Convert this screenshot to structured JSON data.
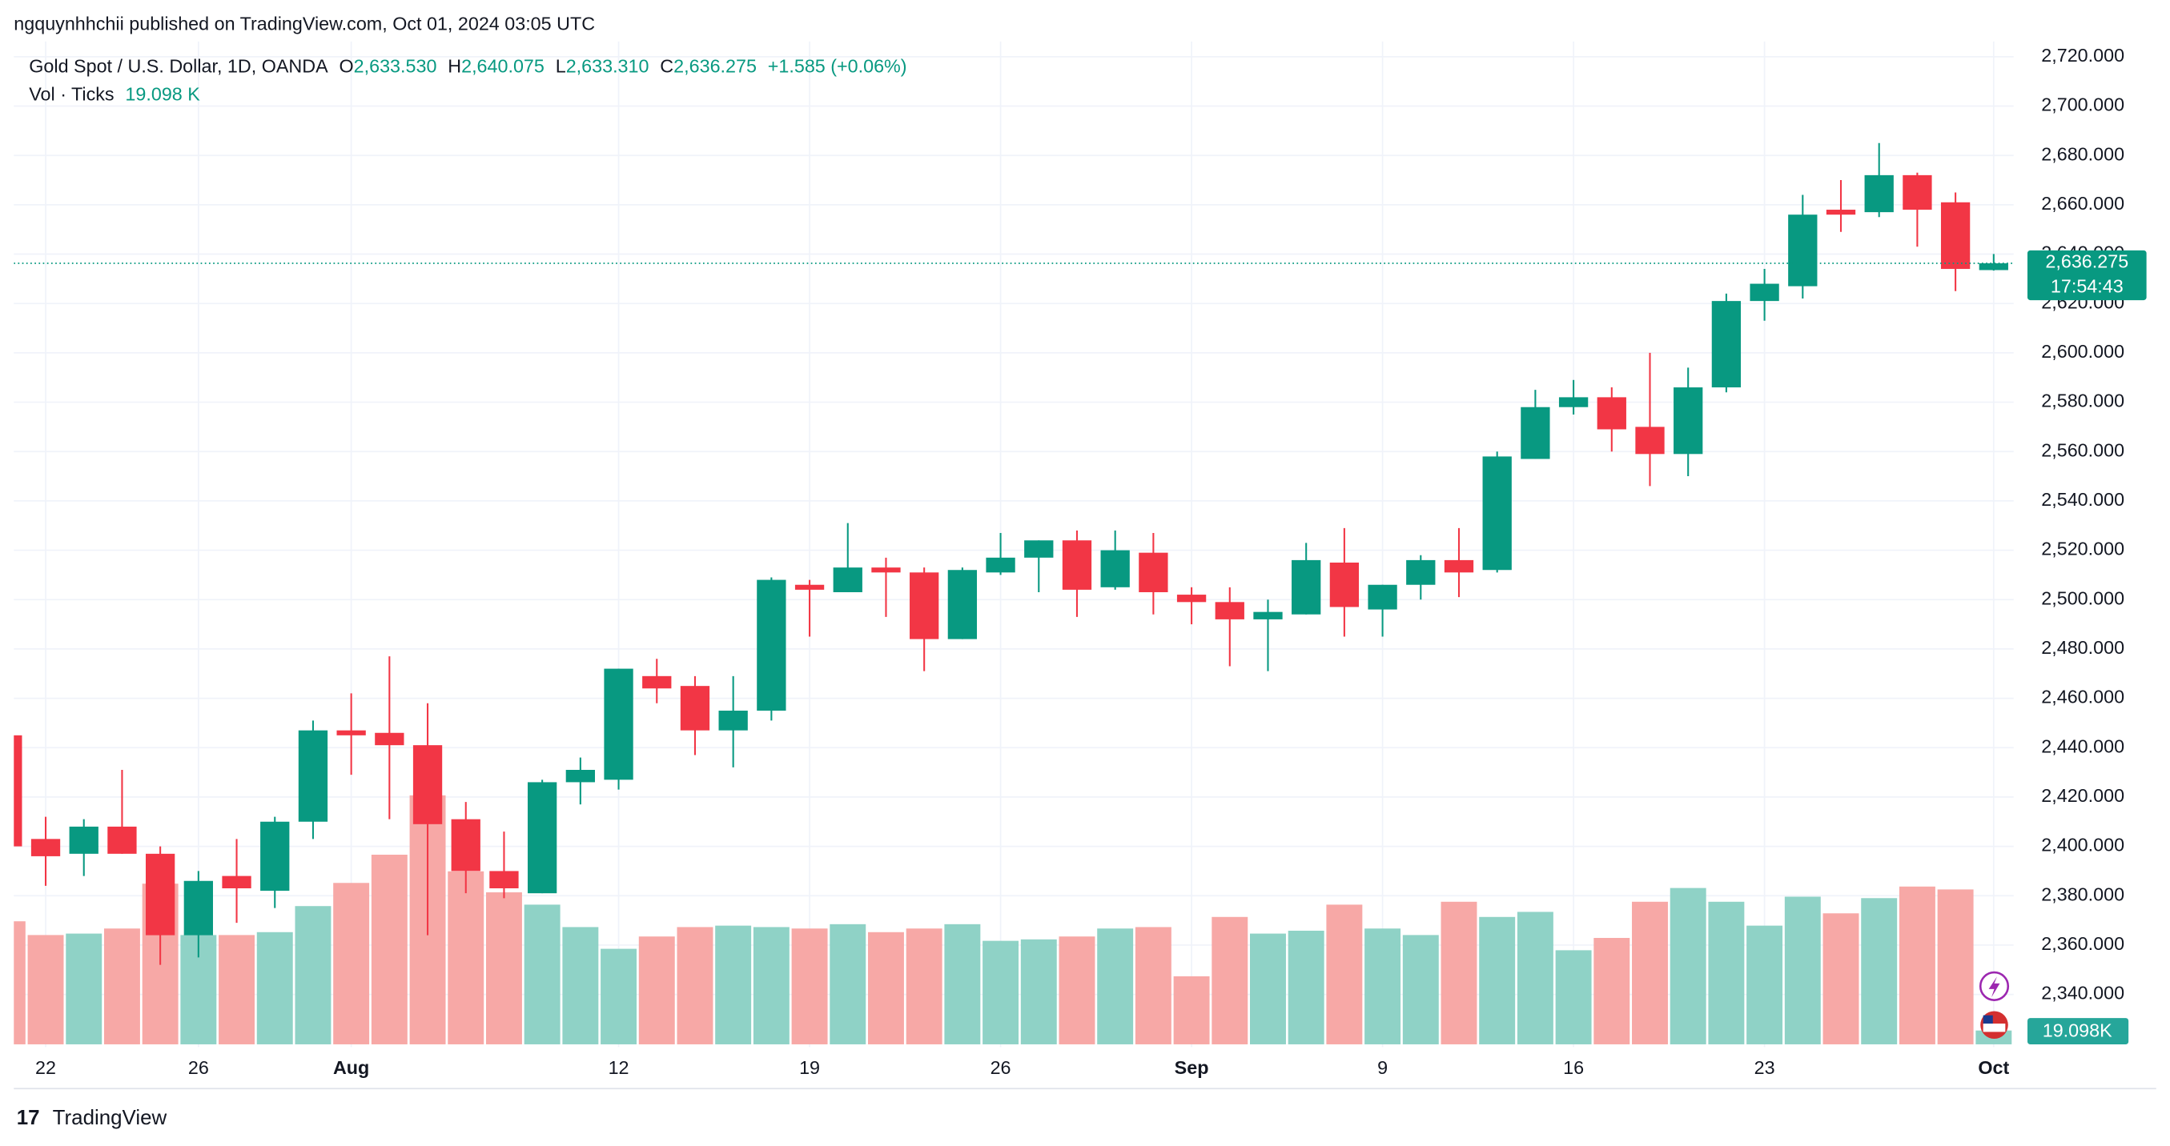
{
  "publisher": "ngquynhhchii published on TradingView.com, Oct 01, 2024 03:05 UTC",
  "header": {
    "symbol": "Gold Spot / U.S. Dollar, 1D, OANDA",
    "o_label": "O",
    "o": "2,633.530",
    "h_label": "H",
    "h": "2,640.075",
    "l_label": "L",
    "l": "2,633.310",
    "c_label": "C",
    "c": "2,636.275",
    "change": "+1.585 (+0.06%)",
    "vol_label": "Vol · Ticks",
    "vol": "19.098 K"
  },
  "price_label": "2,636.275",
  "countdown": "17:54:43",
  "volume_label": "19.098K",
  "brand": "TradingView",
  "chart_data": {
    "type": "candlestick",
    "up_color": "#089981",
    "down_color": "#f23645",
    "up_volume_color": "#8fd2c6",
    "down_volume_color": "#f7a8a6",
    "grid": true,
    "categories": [
      null,
      "22",
      null,
      null,
      null,
      "26",
      null,
      null,
      null,
      "Aug",
      null,
      null,
      null,
      null,
      null,
      null,
      "12",
      null,
      null,
      null,
      null,
      "19",
      null,
      null,
      null,
      null,
      "26",
      null,
      null,
      null,
      null,
      "Sep",
      null,
      null,
      null,
      null,
      "9",
      null,
      null,
      null,
      null,
      "16",
      null,
      null,
      null,
      null,
      "23",
      null,
      null,
      null,
      null,
      null,
      "Oct"
    ],
    "open": [
      2445,
      2403,
      2397,
      2408,
      2397,
      2364,
      2388,
      2382,
      2410,
      2447,
      2446,
      2441,
      2411,
      2390,
      2381,
      2426,
      2427,
      2469,
      2465,
      2447,
      2455,
      2506,
      2503,
      2513,
      2511,
      2484,
      2511,
      2517,
      2524,
      2505,
      2519,
      2502,
      2499,
      2492,
      2494,
      2515,
      2496,
      2506,
      2516,
      2512,
      2557,
      2578,
      2582,
      2570,
      2559,
      2586,
      2621,
      2627,
      2658,
      2657,
      2672,
      2661,
      2633.53
    ],
    "high": [
      2446,
      2412,
      2411,
      2431,
      2400,
      2390,
      2403,
      2412,
      2451,
      2462,
      2477,
      2458,
      2418,
      2406,
      2427,
      2436,
      2472,
      2476,
      2469,
      2469,
      2509,
      2508,
      2531,
      2517,
      2513,
      2513,
      2527,
      2524,
      2528,
      2528,
      2527,
      2505,
      2505,
      2500,
      2523,
      2529,
      2506,
      2518,
      2529,
      2560,
      2585,
      2589,
      2586,
      2600,
      2594,
      2624,
      2634,
      2664,
      2670,
      2685,
      2673,
      2665,
      2640.075
    ],
    "low": [
      2399,
      2384,
      2388,
      2397,
      2352,
      2355,
      2369,
      2375,
      2403,
      2429,
      2411,
      2364,
      2381,
      2379,
      2381,
      2417,
      2423,
      2458,
      2437,
      2432,
      2451,
      2485,
      2503,
      2493,
      2471,
      2484,
      2510,
      2503,
      2493,
      2504,
      2494,
      2490,
      2473,
      2471,
      2494,
      2485,
      2485,
      2500,
      2501,
      2511,
      2557,
      2575,
      2560,
      2546,
      2550,
      2584,
      2613,
      2622,
      2649,
      2655,
      2643,
      2625,
      2633.31
    ],
    "close": [
      2400,
      2396,
      2408,
      2397,
      2364,
      2386,
      2383,
      2410,
      2447,
      2445,
      2441,
      2409,
      2390,
      2383,
      2426,
      2431,
      2472,
      2464,
      2447,
      2455,
      2508,
      2504,
      2513,
      2511,
      2484,
      2512,
      2517,
      2524,
      2504,
      2520,
      2503,
      2499,
      2492,
      2495,
      2516,
      2497,
      2506,
      2516,
      2511,
      2558,
      2578,
      2582,
      2569,
      2559,
      2586,
      2621,
      2628,
      2656,
      2656,
      2672,
      2658,
      2634,
      2636.275
    ],
    "volume": [
      170,
      151,
      153,
      160,
      222,
      151,
      151,
      155,
      191,
      223,
      262,
      344,
      239,
      210,
      193,
      162,
      132,
      149,
      162,
      164,
      162,
      160,
      166,
      155,
      160,
      166,
      143,
      145,
      149,
      160,
      162,
      94,
      176,
      153,
      157,
      193,
      160,
      151,
      197,
      176,
      183,
      130,
      147,
      197,
      216,
      197,
      164,
      204,
      181,
      202,
      218,
      214,
      19.098
    ],
    "ylim": [
      2328,
      2730
    ],
    "yticks": [
      {
        "value": 2340,
        "label": "2,340.000"
      },
      {
        "value": 2360,
        "label": "2,360.000"
      },
      {
        "value": 2380,
        "label": "2,380.000"
      },
      {
        "value": 2400,
        "label": "2,400.000"
      },
      {
        "value": 2420,
        "label": "2,420.000"
      },
      {
        "value": 2440,
        "label": "2,440.000"
      },
      {
        "value": 2460,
        "label": "2,460.000"
      },
      {
        "value": 2480,
        "label": "2,480.000"
      },
      {
        "value": 2500,
        "label": "2,500.000"
      },
      {
        "value": 2520,
        "label": "2,520.000"
      },
      {
        "value": 2540,
        "label": "2,540.000"
      },
      {
        "value": 2560,
        "label": "2,560.000"
      },
      {
        "value": 2580,
        "label": "2,580.000"
      },
      {
        "value": 2600,
        "label": "2,600.000"
      },
      {
        "value": 2620,
        "label": "2,620.000"
      },
      {
        "value": 2640,
        "label": "2,640.000"
      },
      {
        "value": 2660,
        "label": "2,660.000"
      },
      {
        "value": 2680,
        "label": "2,680.000"
      },
      {
        "value": 2700,
        "label": "2,700.000"
      },
      {
        "value": 2720,
        "label": "2,720.000"
      }
    ]
  }
}
